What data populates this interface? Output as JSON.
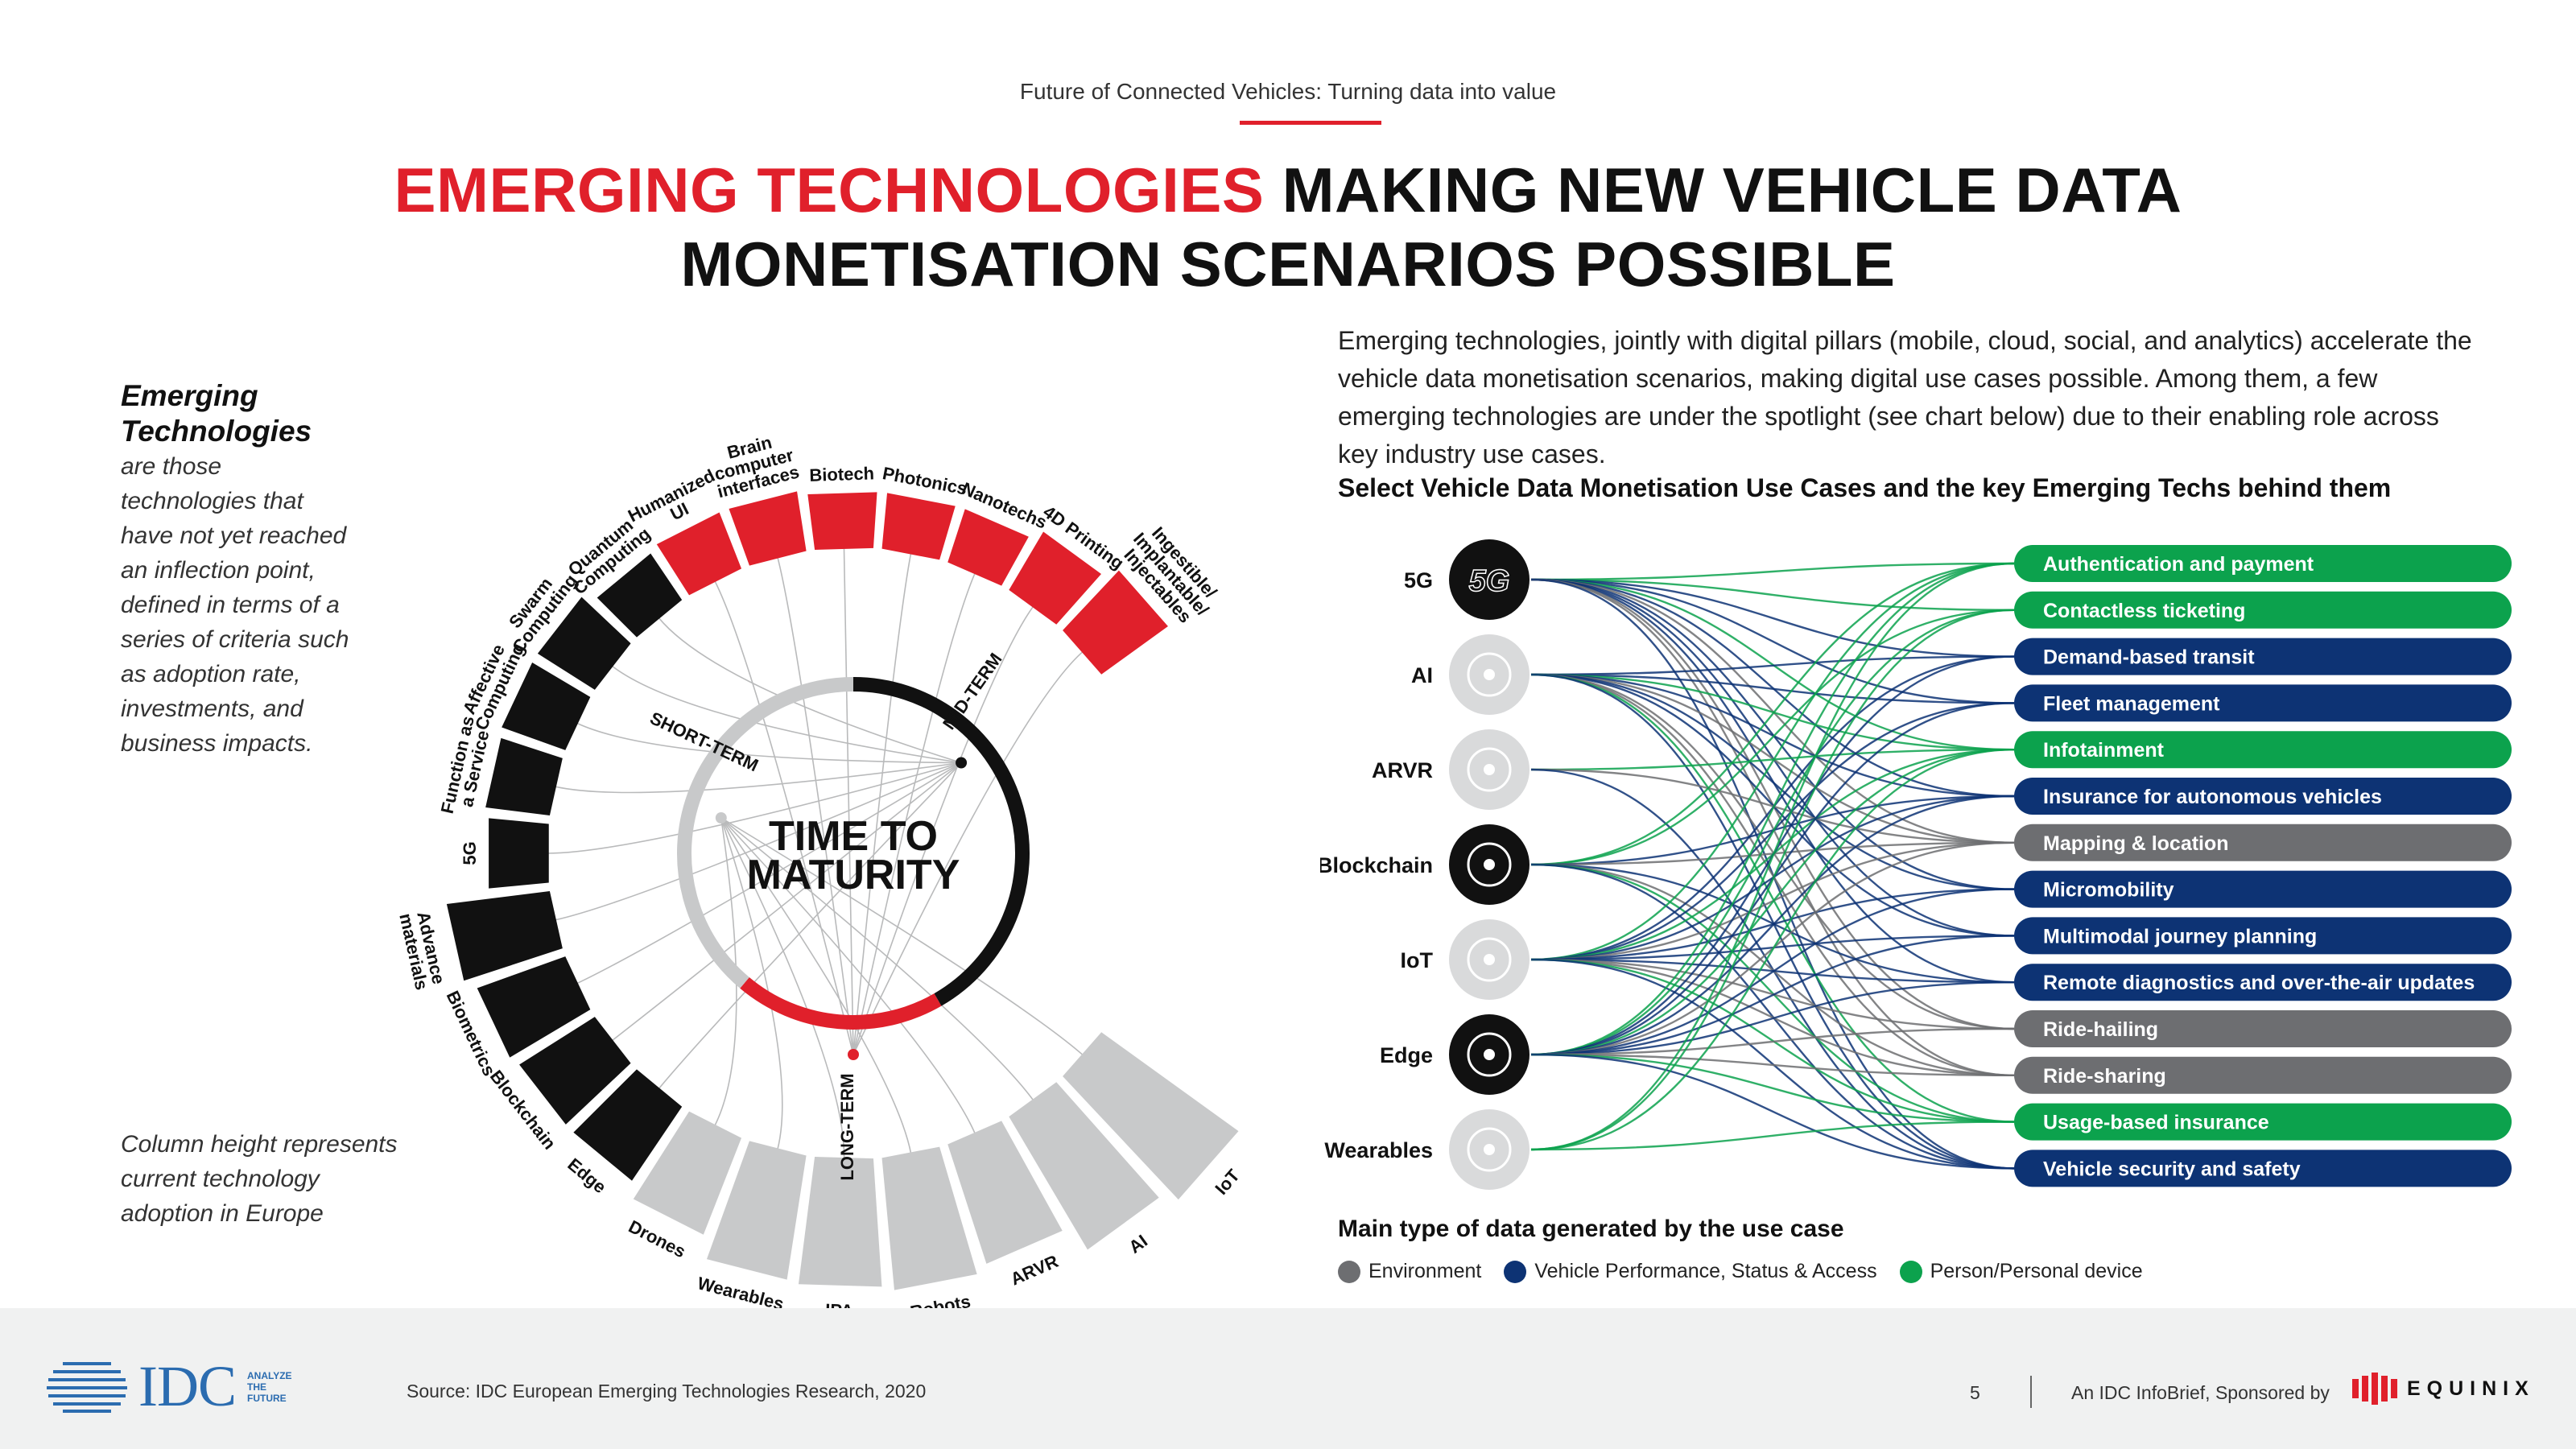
{
  "header": {
    "subtitle": "Future of Connected Vehicles: Turning data into value",
    "title_accent": "EMERGING TECHNOLOGIES",
    "title_line1_rest": "MAKING NEW VEHICLE DATA",
    "title_line2": "MONETISATION SCENARIOS POSSIBLE"
  },
  "definition": {
    "title_line1": "Emerging",
    "title_line2": "Technologies",
    "lines": [
      "are those",
      "technologies that",
      "have not yet reached",
      "an inflection point,",
      "defined in terms of a",
      "series of criteria such",
      "as adoption rate,",
      "investments, and",
      "business impacts."
    ]
  },
  "column_note": {
    "lines": [
      "Column height represents",
      "current technology",
      "adoption in Europe"
    ]
  },
  "radial": {
    "center_label": [
      "TIME TO",
      "MATURITY"
    ],
    "terms": {
      "short": "SHORT-TERM",
      "mid": "MID-TERM",
      "long": "LONG-TERM"
    },
    "colors": {
      "short": "#c8c9ca",
      "mid": "#111111",
      "long": "#e0202b"
    },
    "technologies": [
      {
        "label": "IoT",
        "term": "short",
        "adoption": 1.0
      },
      {
        "label": "AI",
        "term": "short",
        "adoption": 0.9
      },
      {
        "label": "ARVR",
        "term": "short",
        "adoption": 0.7
      },
      {
        "label": "Robots",
        "term": "short",
        "adoption": 0.75
      },
      {
        "label": "IPA",
        "term": "short",
        "adoption": 0.72
      },
      {
        "label": "Wearables",
        "term": "short",
        "adoption": 0.7
      },
      {
        "label": "Drones",
        "term": "short",
        "adoption": 0.55
      },
      {
        "label": "Edge",
        "term": "mid",
        "adoption": 0.45
      },
      {
        "label": "Blockchain",
        "term": "mid",
        "adoption": 0.45
      },
      {
        "label": "Biometrics",
        "term": "mid",
        "adoption": 0.48
      },
      {
        "label": "Advance materials",
        "term": "mid",
        "adoption": 0.55
      },
      {
        "label": "5G",
        "term": "mid",
        "adoption": 0.25
      },
      {
        "label": "Function as a Service",
        "term": "mid",
        "adoption": 0.28
      },
      {
        "label": "Affective Computing",
        "term": "mid",
        "adoption": 0.3
      },
      {
        "label": "Swarm Computing",
        "term": "mid",
        "adoption": 0.3
      },
      {
        "label": "Quantum Computing",
        "term": "mid",
        "adoption": 0.22
      },
      {
        "label": "Humanized UI",
        "term": "long",
        "adoption": 0.25
      },
      {
        "label": "Brain computer interfaces",
        "term": "long",
        "adoption": 0.25
      },
      {
        "label": "Biotech",
        "term": "long",
        "adoption": 0.22
      },
      {
        "label": "Photonics",
        "term": "long",
        "adoption": 0.22
      },
      {
        "label": "Nanotechs",
        "term": "long",
        "adoption": 0.22
      },
      {
        "label": "4D Printing",
        "term": "long",
        "adoption": 0.3
      },
      {
        "label": "Ingestible/ Implantable/ Injectables",
        "term": "long",
        "adoption": 0.4
      }
    ]
  },
  "intro_text": "Emerging technologies, jointly with digital pillars (mobile, cloud, social, and analytics) accelerate the vehicle data monetisation scenarios, making digital use cases possible. Among them, a few emerging technologies are under the spotlight (see chart below) due to their enabling role across key industry use cases.",
  "flow": {
    "title": "Select Vehicle Data Monetisation Use Cases and the key Emerging Techs behind them",
    "techs": [
      {
        "label": "5G",
        "icon": "5g-icon",
        "icon_text": "5G"
      },
      {
        "label": "AI",
        "icon": "ai-brain-icon"
      },
      {
        "label": "ARVR",
        "icon": "vr-headset-icon"
      },
      {
        "label": "Blockchain",
        "icon": "blockchain-icon"
      },
      {
        "label": "IoT",
        "icon": "iot-network-icon"
      },
      {
        "label": "Edge",
        "icon": "edge-network-icon"
      },
      {
        "label": "Wearables",
        "icon": "wearable-watch-icon"
      }
    ],
    "use_cases": [
      {
        "label": "Authentication and payment",
        "type": "person"
      },
      {
        "label": "Contactless ticketing",
        "type": "person"
      },
      {
        "label": "Demand-based transit",
        "type": "vehicle"
      },
      {
        "label": "Fleet management",
        "type": "vehicle"
      },
      {
        "label": "Infotainment",
        "type": "person"
      },
      {
        "label": "Insurance for autonomous vehicles",
        "type": "vehicle"
      },
      {
        "label": "Mapping & location",
        "type": "environment"
      },
      {
        "label": "Micromobility",
        "type": "vehicle"
      },
      {
        "label": "Multimodal journey planning",
        "type": "vehicle"
      },
      {
        "label": "Remote diagnostics and over-the-air updates",
        "type": "vehicle"
      },
      {
        "label": "Ride-hailing",
        "type": "environment"
      },
      {
        "label": "Ride-sharing",
        "type": "environment"
      },
      {
        "label": "Usage-based insurance",
        "type": "person"
      },
      {
        "label": "Vehicle security and safety",
        "type": "vehicle"
      }
    ],
    "links": [
      [
        0,
        0
      ],
      [
        0,
        1
      ],
      [
        0,
        2
      ],
      [
        0,
        3
      ],
      [
        0,
        4
      ],
      [
        0,
        5
      ],
      [
        0,
        6
      ],
      [
        0,
        7
      ],
      [
        0,
        8
      ],
      [
        0,
        9
      ],
      [
        0,
        10
      ],
      [
        0,
        11
      ],
      [
        0,
        13
      ],
      [
        1,
        2
      ],
      [
        1,
        3
      ],
      [
        1,
        4
      ],
      [
        1,
        5
      ],
      [
        1,
        6
      ],
      [
        1,
        7
      ],
      [
        1,
        8
      ],
      [
        1,
        10
      ],
      [
        1,
        11
      ],
      [
        1,
        12
      ],
      [
        1,
        13
      ],
      [
        2,
        4
      ],
      [
        2,
        6
      ],
      [
        2,
        13
      ],
      [
        3,
        0
      ],
      [
        3,
        1
      ],
      [
        3,
        5
      ],
      [
        3,
        6
      ],
      [
        3,
        9
      ],
      [
        3,
        11
      ],
      [
        3,
        12
      ],
      [
        3,
        13
      ],
      [
        4,
        0
      ],
      [
        4,
        2
      ],
      [
        4,
        3
      ],
      [
        4,
        4
      ],
      [
        4,
        5
      ],
      [
        4,
        6
      ],
      [
        4,
        7
      ],
      [
        4,
        8
      ],
      [
        4,
        9
      ],
      [
        4,
        10
      ],
      [
        4,
        11
      ],
      [
        4,
        12
      ],
      [
        4,
        13
      ],
      [
        5,
        0
      ],
      [
        5,
        1
      ],
      [
        5,
        2
      ],
      [
        5,
        3
      ],
      [
        5,
        4
      ],
      [
        5,
        5
      ],
      [
        5,
        6
      ],
      [
        5,
        7
      ],
      [
        5,
        8
      ],
      [
        5,
        9
      ],
      [
        5,
        10
      ],
      [
        5,
        11
      ],
      [
        5,
        12
      ],
      [
        5,
        13
      ],
      [
        6,
        0
      ],
      [
        6,
        1
      ],
      [
        6,
        4
      ],
      [
        6,
        12
      ]
    ]
  },
  "legend": {
    "title": "Main type of data generated by the use case",
    "items": [
      {
        "key": "environment",
        "label": "Environment",
        "color": "#6d6e71"
      },
      {
        "key": "vehicle",
        "label": "Vehicle Performance, Status & Access",
        "color": "#0d3374"
      },
      {
        "key": "person",
        "label": "Person/Personal device",
        "color": "#0ca24d"
      }
    ]
  },
  "footer": {
    "logo_text": "IDC",
    "logo_tagline": [
      "ANALYZE",
      "THE",
      "FUTURE"
    ],
    "source": "Source: IDC European Emerging Technologies Research, 2020",
    "page": "5",
    "sponsor": "An IDC InfoBrief, Sponsored by",
    "sponsor_name": "EQUINIX"
  }
}
